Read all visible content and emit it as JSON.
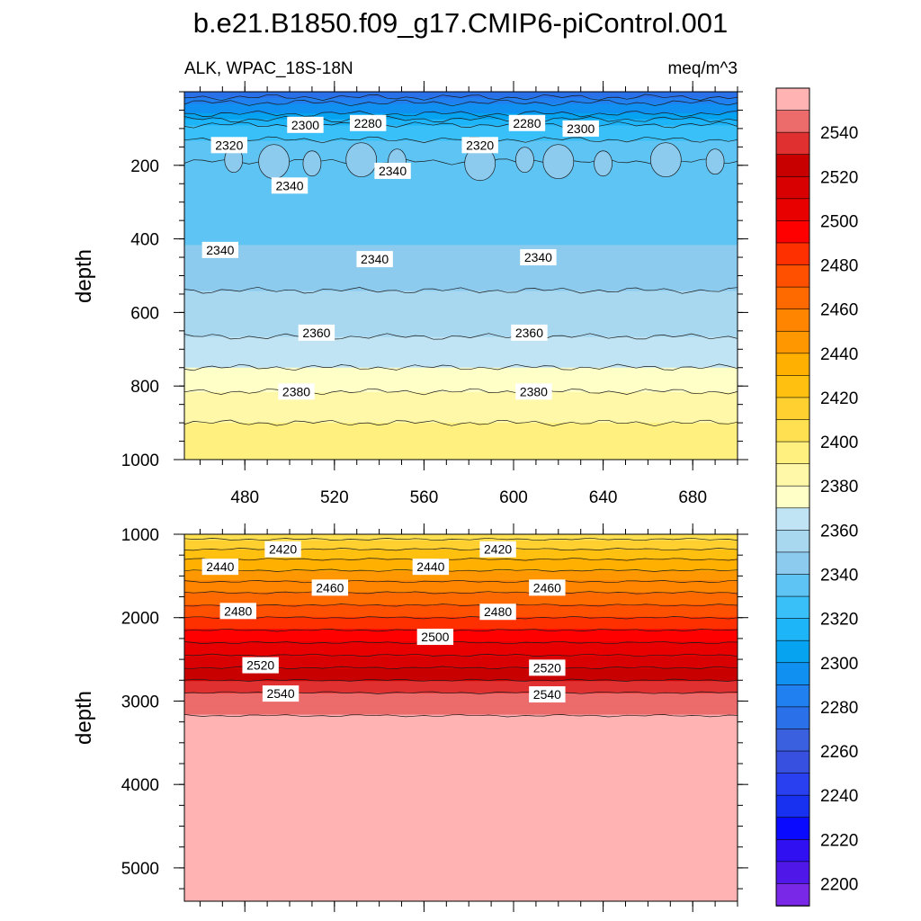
{
  "title": "b.e21.B1850.f09_g17.CMIP6-piControl.001",
  "left_string": "ALK, WPAC_18S-18N",
  "right_string": "meq/m^3",
  "chart_data": {
    "type": "contour",
    "variable": "ALK",
    "region": "WPAC_18S-18N",
    "units": "meq/m^3",
    "x_axis": {
      "range": [
        453,
        700
      ],
      "ticks": [
        480,
        520,
        560,
        600,
        640,
        680
      ]
    },
    "panels": [
      {
        "name": "upper",
        "ylabel": "depth",
        "ylim": [
          0,
          1000
        ],
        "y_reversed": true,
        "yticks": [
          200,
          400,
          600,
          800,
          1000
        ],
        "levels": [
          {
            "depth": 0,
            "value": 2270
          },
          {
            "depth": 30,
            "value": 2290
          },
          {
            "depth": 60,
            "value": 2300
          },
          {
            "depth": 90,
            "value": 2320
          },
          {
            "depth": 130,
            "value": 2330
          },
          {
            "depth": 190,
            "value": 2340
          },
          {
            "depth": 300,
            "value": 2335
          },
          {
            "depth": 420,
            "value": 2340
          },
          {
            "depth": 500,
            "value": 2345
          },
          {
            "depth": 580,
            "value": 2355
          },
          {
            "depth": 700,
            "value": 2362
          },
          {
            "depth": 780,
            "value": 2375
          },
          {
            "depth": 850,
            "value": 2385
          },
          {
            "depth": 950,
            "value": 2395
          },
          {
            "depth": 1000,
            "value": 2398
          }
        ],
        "contour_labels": [
          {
            "x": 473,
            "depth": 145,
            "text": "2320"
          },
          {
            "x": 507,
            "depth": 90,
            "text": "2300"
          },
          {
            "x": 535,
            "depth": 85,
            "text": "2280"
          },
          {
            "x": 585,
            "depth": 145,
            "text": "2320"
          },
          {
            "x": 606,
            "depth": 85,
            "text": "2280"
          },
          {
            "x": 630,
            "depth": 100,
            "text": "2300"
          },
          {
            "x": 546,
            "depth": 215,
            "text": "2340"
          },
          {
            "x": 500,
            "depth": 255,
            "text": "2340"
          },
          {
            "x": 469,
            "depth": 430,
            "text": "2340"
          },
          {
            "x": 538,
            "depth": 455,
            "text": "2340"
          },
          {
            "x": 611,
            "depth": 450,
            "text": "2340"
          },
          {
            "x": 512,
            "depth": 655,
            "text": "2360"
          },
          {
            "x": 607,
            "depth": 655,
            "text": "2360"
          },
          {
            "x": 503,
            "depth": 815,
            "text": "2380"
          },
          {
            "x": 609,
            "depth": 815,
            "text": "2380"
          }
        ]
      },
      {
        "name": "lower",
        "ylabel": "depth",
        "ylim": [
          1000,
          5400
        ],
        "y_reversed": true,
        "yticks": [
          1000,
          2000,
          3000,
          4000,
          5000
        ],
        "levels": [
          {
            "depth": 1000,
            "value": 2405
          },
          {
            "depth": 1300,
            "value": 2430
          },
          {
            "depth": 1700,
            "value": 2460
          },
          {
            "depth": 2000,
            "value": 2480
          },
          {
            "depth": 2300,
            "value": 2500
          },
          {
            "depth": 2600,
            "value": 2520
          },
          {
            "depth": 2900,
            "value": 2540
          },
          {
            "depth": 3150,
            "value": 2548
          },
          {
            "depth": 3300,
            "value": 2560
          },
          {
            "depth": 5400,
            "value": 2560
          }
        ],
        "contour_labels": [
          {
            "x": 497,
            "depth": 1180,
            "text": "2420"
          },
          {
            "x": 593,
            "depth": 1180,
            "text": "2420"
          },
          {
            "x": 469,
            "depth": 1390,
            "text": "2440"
          },
          {
            "x": 563,
            "depth": 1390,
            "text": "2440"
          },
          {
            "x": 518,
            "depth": 1640,
            "text": "2460"
          },
          {
            "x": 615,
            "depth": 1640,
            "text": "2460"
          },
          {
            "x": 477,
            "depth": 1920,
            "text": "2480"
          },
          {
            "x": 593,
            "depth": 1930,
            "text": "2480"
          },
          {
            "x": 565,
            "depth": 2230,
            "text": "2500"
          },
          {
            "x": 487,
            "depth": 2570,
            "text": "2520"
          },
          {
            "x": 615,
            "depth": 2600,
            "text": "2520"
          },
          {
            "x": 496,
            "depth": 2910,
            "text": "2540"
          },
          {
            "x": 615,
            "depth": 2920,
            "text": "2540"
          }
        ]
      }
    ],
    "colorbar": {
      "levels_min": 2190,
      "levels_max": 2560,
      "labels": [
        2540,
        2520,
        2500,
        2480,
        2460,
        2440,
        2420,
        2400,
        2380,
        2360,
        2340,
        2320,
        2300,
        2280,
        2260,
        2240,
        2220,
        2200
      ],
      "colors_top_to_bottom": [
        "#ffb3b3",
        "#ec6b6b",
        "#e03030",
        "#c80000",
        "#d80000",
        "#e80000",
        "#ff0000",
        "#ff3000",
        "#ff5000",
        "#ff6a00",
        "#ff8400",
        "#ff9800",
        "#ffb000",
        "#ffc010",
        "#ffd030",
        "#ffe050",
        "#fff080",
        "#fff8a8",
        "#ffffc8",
        "#c0e4f4",
        "#a8d8f0",
        "#8ccaee",
        "#5ec4f4",
        "#3ac0f8",
        "#1eb4f8",
        "#06a4f0",
        "#1090f0",
        "#2080f0",
        "#2a70e8",
        "#3a60e0",
        "#3850e0",
        "#2840f0",
        "#1830f0",
        "#0a0aff",
        "#3010f0",
        "#5018e8",
        "#7a28e8"
      ]
    }
  }
}
